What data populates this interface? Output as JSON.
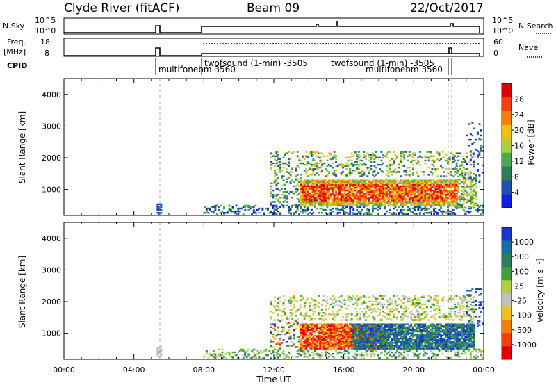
{
  "header": {
    "station": "Clyde River (fitACF)",
    "beam": "Beam 09",
    "date": "22/Oct/2017"
  },
  "panels": {
    "nsky": {
      "label": "N.Sky",
      "ticks": [
        "10^5",
        "10^0"
      ],
      "right_ticks": [
        "10^5",
        "10^0"
      ],
      "right_label": "N.Search"
    },
    "freq": {
      "label_line1": "Freq.",
      "label_line2": "[MHz]",
      "ticks": [
        "18",
        "8"
      ],
      "right_ticks": [
        "60",
        "0"
      ],
      "right_label": "Nave"
    },
    "cpid": {
      "label": "CPID",
      "entries": [
        {
          "text": "multifonebm 3560",
          "row": "lower",
          "at_hour": 5.4
        },
        {
          "text": "twofsound (1-min) -3505",
          "row": "upper",
          "at_hour": 8.0
        },
        {
          "text": "twofsound (1-min) -3505",
          "row": "upper",
          "at_hour": 15.8
        },
        {
          "text": "multifonebm 3560",
          "row": "lower",
          "at_hour": 17.0
        }
      ]
    }
  },
  "colors": {
    "power": [
      "#1020e0",
      "#2050b0",
      "#2e7d5a",
      "#4fa850",
      "#a8d040",
      "#f0c010",
      "#f08010",
      "#f04010",
      "#e00000"
    ],
    "velocity": [
      "#e00000",
      "#f04010",
      "#f08010",
      "#f0c020",
      "#c0c0c0",
      "#b0d040",
      "#40a040",
      "#2e7d5a",
      "#1a6aa8",
      "#1838c8"
    ]
  },
  "chart_data": [
    {
      "type": "heatmap",
      "title": "",
      "xlabel": "Time UT",
      "ylabel": "Slant Range [km]",
      "colorbar_label": "Power [dB]",
      "colorbar_ticks": [
        "4",
        "8",
        "12",
        "16",
        "20",
        "24",
        "28"
      ],
      "x_ticks": [
        "00:00",
        "04:00",
        "08:00",
        "12:00",
        "16:00",
        "20:00",
        "00:00"
      ],
      "y_ticks": [
        "1000",
        "2000",
        "3000",
        "4000"
      ],
      "xlim": [
        0,
        24
      ],
      "ylim": [
        180,
        4500
      ],
      "features": [
        {
          "name": "weak scatter",
          "t0": 8.0,
          "t1": 24.0,
          "r0": 200,
          "r1": 500,
          "level_db": 6
        },
        {
          "name": "strong echo band",
          "t0": 13.5,
          "t1": 22.5,
          "r0": 500,
          "r1": 1300,
          "level_db": 28
        },
        {
          "name": "upper patches",
          "t0": 11.8,
          "t1": 23.5,
          "r0": 1400,
          "r1": 2200,
          "level_db": 10
        }
      ]
    },
    {
      "type": "heatmap",
      "title": "",
      "xlabel": "Time UT",
      "ylabel": "Slant Range [km]",
      "colorbar_label": "Velocity [m s⁻¹]",
      "colorbar_ticks": [
        "-1000",
        "-500",
        "-100",
        "-25",
        "25",
        "100",
        "500",
        "1000"
      ],
      "x_ticks": [
        "00:00",
        "04:00",
        "08:00",
        "12:00",
        "16:00",
        "20:00",
        "00:00"
      ],
      "y_ticks": [
        "1000",
        "2000",
        "3000",
        "4000"
      ],
      "xlim": [
        0,
        24
      ],
      "ylim": [
        180,
        4500
      ],
      "features": [
        {
          "name": "negative velocity band",
          "t0": 13.5,
          "t1": 18.5,
          "r0": 500,
          "r1": 1300,
          "velocity": -500
        },
        {
          "name": "positive velocity band",
          "t0": 16.5,
          "t1": 23.5,
          "r0": 500,
          "r1": 1300,
          "velocity": 500
        },
        {
          "name": "low velocity patches",
          "t0": 11.8,
          "t1": 23.5,
          "r0": 1400,
          "r1": 2200,
          "velocity": 25
        }
      ]
    }
  ]
}
